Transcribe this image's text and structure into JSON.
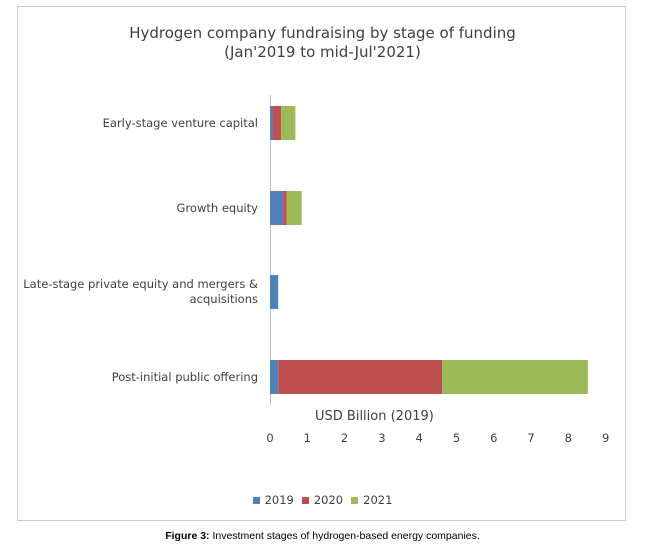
{
  "chart_data": {
    "type": "bar",
    "orientation": "horizontal",
    "stacked": true,
    "title": "Hydrogen company fundraising by stage of funding",
    "subtitle": "(Jan'2019 to mid-Jul'2021)",
    "xlabel": "USD Billion (2019)",
    "xlim": [
      0,
      9
    ],
    "xticks": [
      "0",
      "1",
      "2",
      "3",
      "4",
      "5",
      "6",
      "7",
      "8",
      "9"
    ],
    "grid": false,
    "legend_position": "bottom",
    "categories": [
      "Early-stage venture capital",
      "Growth equity",
      "Late-stage private equity and mergers & acquisitions",
      "Post-initial public offering"
    ],
    "series": [
      {
        "name": "2019",
        "color": "#4f81bd",
        "values": [
          0.08,
          0.35,
          0.22,
          0.22
        ]
      },
      {
        "name": "2020",
        "color": "#c0504d",
        "values": [
          0.22,
          0.1,
          0.0,
          4.4
        ]
      },
      {
        "name": "2021",
        "color": "#9bbb59",
        "values": [
          0.38,
          0.4,
          0.0,
          3.9
        ]
      }
    ]
  },
  "caption": {
    "label": "Figure 3:",
    "text": " Investment stages of hydrogen-based energy companies."
  }
}
